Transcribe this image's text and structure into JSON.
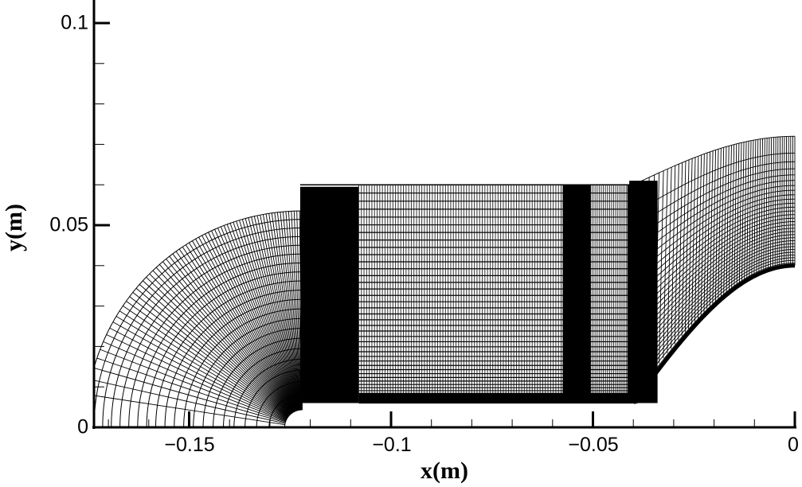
{
  "chart_data": {
    "type": "mesh",
    "title": "",
    "xlabel": "x(m)",
    "ylabel": "y(m)",
    "xlim": [
      -0.173,
      0.0
    ],
    "ylim": [
      0.0,
      0.105
    ],
    "grid": false,
    "x_ticks": [
      {
        "value": -0.15,
        "label": "−0.15"
      },
      {
        "value": -0.1,
        "label": "−0.1"
      },
      {
        "value": -0.05,
        "label": "−0.05"
      },
      {
        "value": 0,
        "label": "0"
      }
    ],
    "y_ticks": [
      {
        "value": 0,
        "label": "0"
      },
      {
        "value": 0.05,
        "label": "0.05"
      },
      {
        "value": 0.1,
        "label": "0.1"
      }
    ],
    "x_minor_step": 0.01,
    "y_minor_step": 0.01,
    "regions": [
      {
        "name": "left-quarter-annulus",
        "center_x": -0.122,
        "center_y": 0.0,
        "inner_radius": 0.004,
        "outer_radius": 0.06,
        "x_range": [
          -0.173,
          -0.122
        ]
      },
      {
        "name": "central-channel",
        "x_range": [
          -0.122,
          -0.04
        ],
        "y_range": [
          0.006,
          0.06
        ]
      },
      {
        "name": "right-curved-outlet",
        "x_range": [
          -0.04,
          0.0
        ],
        "y_bottom_range": [
          0.006,
          0.04
        ],
        "y_top_range": [
          0.06,
          0.072
        ]
      }
    ],
    "dense_bands_x": [
      [
        -0.122,
        -0.108
      ],
      [
        -0.0575,
        -0.0505
      ],
      [
        -0.0415,
        -0.0385
      ]
    ]
  },
  "axes": {
    "x_title": "x(m)",
    "y_title": "y(m)",
    "x_tick_labels": [
      "−0.15",
      "−0.1",
      "−0.05",
      "0"
    ],
    "y_tick_labels": [
      "0",
      "0.05",
      "0.1"
    ]
  }
}
